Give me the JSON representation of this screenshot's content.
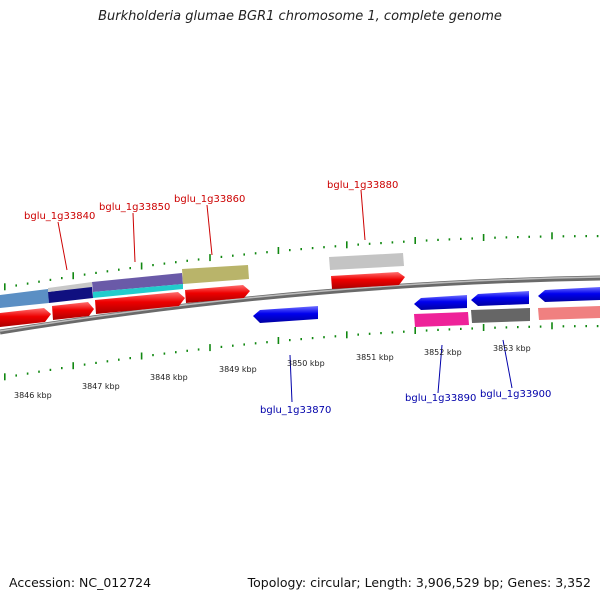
{
  "title": "Burkholderia glumae BGR1 chromosome 1, complete genome",
  "accession_text": "Accession: NC_012724",
  "summary_text": "Topology: circular; Length: 3,906,529 bp; Genes: 3,352",
  "colors": {
    "plus_gene": "#ee0000",
    "minus_gene": "#0000ee",
    "backbone": "#888888",
    "tick": "#118811",
    "plus_label": "#cc0000",
    "minus_label": "#0000aa"
  },
  "kbp_labels": [
    "3846 kbp",
    "3847 kbp",
    "3848 kbp",
    "3849 kbp",
    "3850 kbp",
    "3851 kbp",
    "3852 kbp",
    "3853 kbp"
  ],
  "gene_labels": {
    "g33840": "bglu_1g33840",
    "g33850": "bglu_1g33850",
    "g33860": "bglu_1g33860",
    "g33880": "bglu_1g33880",
    "g33870": "bglu_1g33870",
    "g33890": "bglu_1g33890",
    "g33900": "bglu_1g33900"
  }
}
